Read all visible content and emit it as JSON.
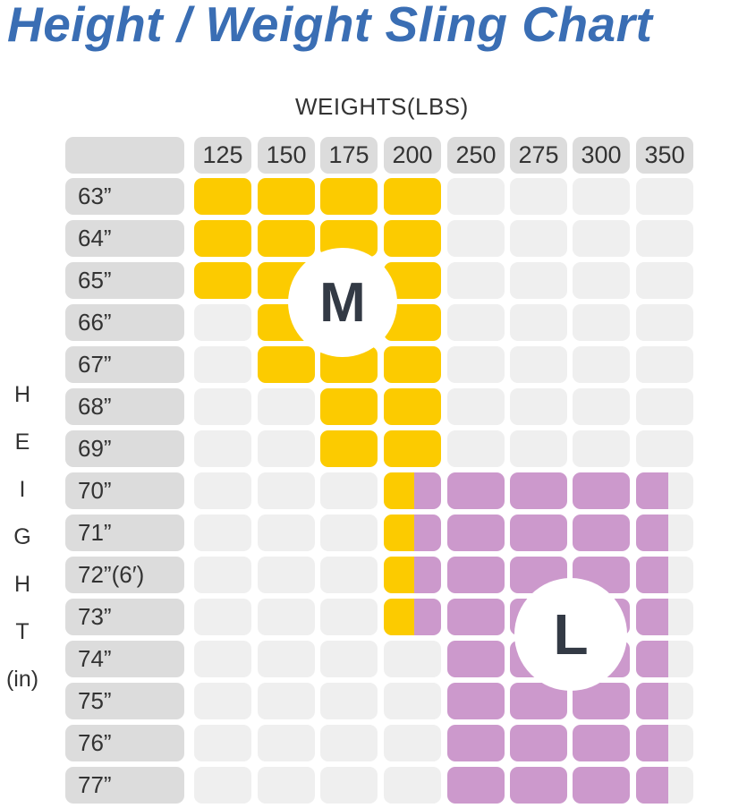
{
  "title": "Height / Weight Sling Chart",
  "x_axis_label": "WEIGHTS(LBS)",
  "y_axis_letters": [
    "H",
    "E",
    "I",
    "G",
    "H",
    "T",
    "(in)"
  ],
  "colors": {
    "title": "#3a6eb4",
    "M": "#fccb00",
    "L": "#cc99cc",
    "empty": "#efefef",
    "header": "#dcdcdc"
  },
  "chart_data": {
    "type": "table",
    "title": "Height / Weight Sling Chart",
    "xlabel": "WEIGHTS(LBS)",
    "ylabel": "HEIGHT (in)",
    "columns": [
      "125",
      "150",
      "175",
      "200",
      "250",
      "275",
      "300",
      "350"
    ],
    "rows": [
      "63”",
      "64”",
      "65”",
      "66”",
      "67”",
      "68”",
      "69”",
      "70”",
      "71”",
      "72”(6′)",
      "73”",
      "74”",
      "75”",
      "76”",
      "77”"
    ],
    "sizes": [
      [
        "M",
        "M",
        "M",
        "M",
        "",
        "",
        "",
        ""
      ],
      [
        "M",
        "M",
        "M",
        "M",
        "",
        "",
        "",
        ""
      ],
      [
        "M",
        "M",
        "M",
        "M",
        "",
        "",
        "",
        ""
      ],
      [
        "",
        "M",
        "M",
        "M",
        "",
        "",
        "",
        ""
      ],
      [
        "",
        "M",
        "M",
        "M",
        "",
        "",
        "",
        ""
      ],
      [
        "",
        "",
        "M",
        "M",
        "",
        "",
        "",
        ""
      ],
      [
        "",
        "",
        "M",
        "M",
        "",
        "",
        "",
        ""
      ],
      [
        "",
        "",
        "",
        "M/L",
        "L",
        "L",
        "L",
        "L"
      ],
      [
        "",
        "",
        "",
        "M/L",
        "L",
        "L",
        "L",
        "L"
      ],
      [
        "",
        "",
        "",
        "M/L",
        "L",
        "L",
        "L",
        "L"
      ],
      [
        "",
        "",
        "",
        "M/L",
        "L",
        "L",
        "L",
        "L"
      ],
      [
        "",
        "",
        "",
        "",
        "L",
        "L",
        "L",
        "L"
      ],
      [
        "",
        "",
        "",
        "",
        "L",
        "L",
        "L",
        "L"
      ],
      [
        "",
        "",
        "",
        "",
        "L",
        "L",
        "L",
        "L"
      ],
      [
        "",
        "",
        "",
        "",
        "L",
        "L",
        "L",
        "L"
      ]
    ],
    "size_labels": [
      "M",
      "L"
    ]
  }
}
